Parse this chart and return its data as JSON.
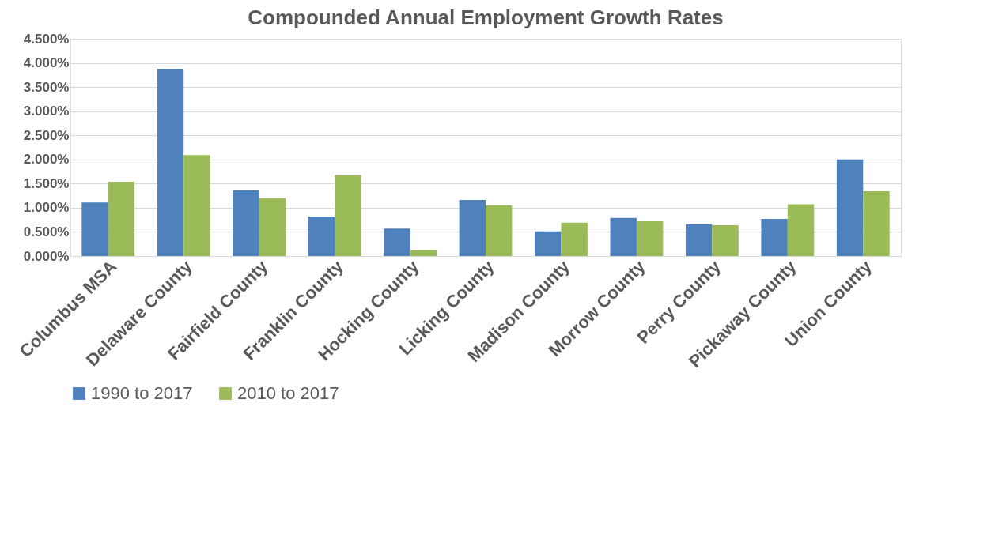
{
  "chart_data": {
    "type": "bar",
    "title": "Compounded Annual Employment Growth Rates",
    "categories": [
      "Columbus MSA",
      "Delaware County",
      "Fairfield County",
      "Franklin County",
      "Hocking County",
      "Licking County",
      "Madison County",
      "Morrow County",
      "Perry County",
      "Pickaway County",
      "Union County"
    ],
    "series": [
      {
        "name": "1990 to 2017",
        "color": "#4f81bd",
        "values": [
          1.11,
          3.88,
          1.36,
          0.82,
          0.57,
          1.16,
          0.51,
          0.79,
          0.66,
          0.77,
          2.0
        ]
      },
      {
        "name": "2010 to 2017",
        "color": "#9bbb59",
        "values": [
          1.54,
          2.09,
          1.2,
          1.67,
          0.13,
          1.05,
          0.69,
          0.72,
          0.64,
          1.07,
          1.34
        ]
      }
    ],
    "ylim": [
      0,
      4.5
    ],
    "yticks": [
      {
        "value": 0,
        "label": "0.000%"
      },
      {
        "value": 0.5,
        "label": "0.500%"
      },
      {
        "value": 1,
        "label": "1.000%"
      },
      {
        "value": 1.5,
        "label": "1.500%"
      },
      {
        "value": 2,
        "label": "2.000%"
      },
      {
        "value": 2.5,
        "label": "2.500%"
      },
      {
        "value": 3,
        "label": "3.000%"
      },
      {
        "value": 3.5,
        "label": "3.500%"
      },
      {
        "value": 4,
        "label": "4.000%"
      },
      {
        "value": 4.5,
        "label": "4.500%"
      }
    ],
    "grid": "y",
    "legend": "bottom"
  }
}
